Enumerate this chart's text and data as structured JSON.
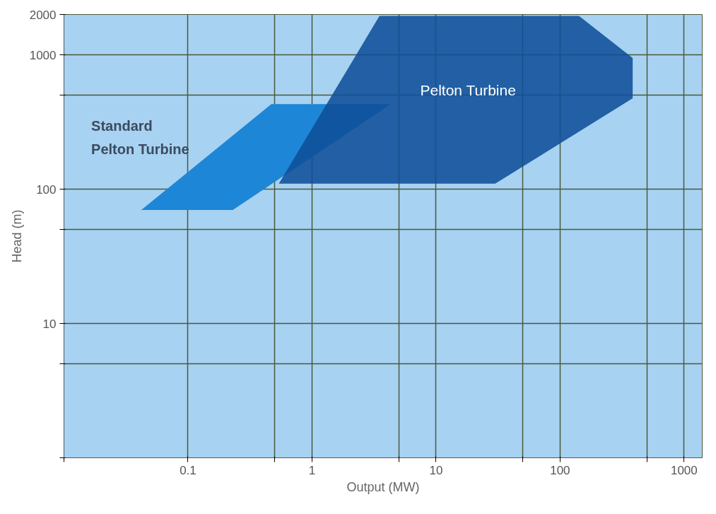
{
  "chart_data": {
    "type": "area",
    "xlabel": "Output (MW)",
    "ylabel": "Head (m)",
    "log": "xy",
    "grid": true,
    "legend": false,
    "xlim": [
      0.01,
      1400
    ],
    "ylim": [
      1,
      2000
    ],
    "xticks": [
      {
        "value": 0.01,
        "label": null
      },
      0.1,
      {
        "value": 0.5,
        "label": null
      },
      1,
      {
        "value": 5,
        "label": null
      },
      10,
      {
        "value": 50,
        "label": null
      },
      100,
      {
        "value": 500,
        "label": null
      },
      1000
    ],
    "yticks": [
      {
        "value": 1,
        "label": null
      },
      {
        "value": 5,
        "label": null
      },
      10,
      {
        "value": 50,
        "label": null
      },
      100,
      {
        "value": 500,
        "label": null
      },
      1000,
      2000
    ],
    "series": [
      {
        "name": "Standard Pelton Turbine",
        "color": "#1e86d6",
        "x": [
          0.042,
          0.23,
          4.3,
          0.47
        ],
        "values": [
          70,
          70,
          430,
          430
        ]
      },
      {
        "name": "Pelton Turbine",
        "color": "#0f4f98",
        "x": [
          0.54,
          30,
          385,
          385,
          142,
          3.5
        ],
        "values": [
          110,
          110,
          475,
          950,
          1950,
          1950
        ]
      }
    ]
  }
}
